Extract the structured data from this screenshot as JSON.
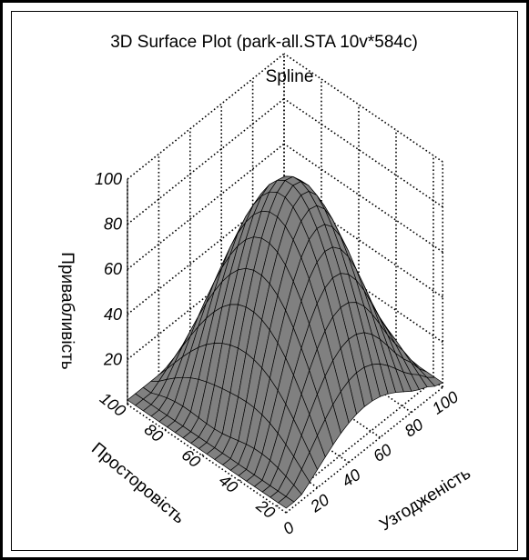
{
  "chart_data": {
    "type": "surface",
    "title": "3D Surface Plot (park-all.STA 10v*584c)",
    "subtitle": "Spline",
    "xlabel": "Узгодженість",
    "ylabel": "Просторовість",
    "zlabel": "Привабливість",
    "x_ticks": [
      "0",
      "20",
      "40",
      "60",
      "80",
      "100"
    ],
    "y_ticks": [
      "20",
      "40",
      "60",
      "80",
      "100"
    ],
    "z_ticks": [
      "20",
      "40",
      "60",
      "80",
      "100"
    ],
    "xlim": [
      0,
      100
    ],
    "ylim": [
      15,
      100
    ],
    "zlim": [
      0,
      100
    ],
    "grid": true,
    "surface_color": "#808080",
    "mesh_color": "#000000"
  }
}
